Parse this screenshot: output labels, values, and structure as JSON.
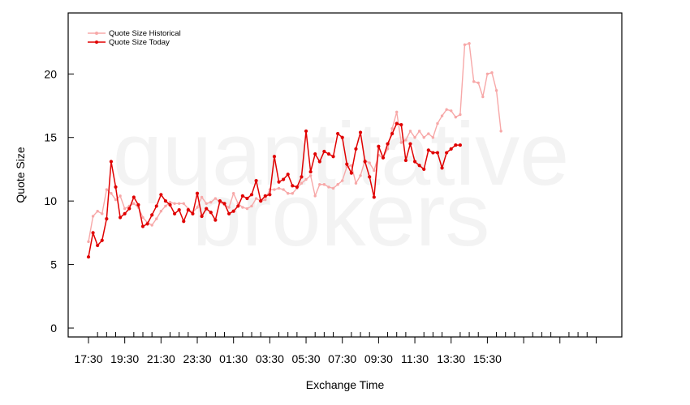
{
  "chart_data": {
    "type": "line",
    "title": "",
    "xlabel": "Exchange Time",
    "ylabel": "Quote Size",
    "watermark": [
      "quantitative",
      "brokers"
    ],
    "x_tick_labels": [
      "17:30",
      "19:30",
      "21:30",
      "23:30",
      "01:30",
      "03:30",
      "05:30",
      "07:30",
      "09:30",
      "11:30",
      "13:30",
      "15:30"
    ],
    "y_ticks": [
      0,
      5,
      10,
      15,
      20
    ],
    "ylim": [
      -0.7,
      24.8
    ],
    "grid": false,
    "legend_position": "top-left",
    "n_points": 114,
    "series": [
      {
        "name": "Quote Size Historical",
        "color": "#f7a8a8",
        "values": [
          6.8,
          8.8,
          9.2,
          9.0,
          10.9,
          10.6,
          10.1,
          10.4,
          9.4,
          9.6,
          9.8,
          9.5,
          8.7,
          8.3,
          8.1,
          8.6,
          9.2,
          9.6,
          9.9,
          9.8,
          9.8,
          9.8,
          9.4,
          9.1,
          9.5,
          10.3,
          9.8,
          9.9,
          10.2,
          9.9,
          9.7,
          9.5,
          10.6,
          9.8,
          9.5,
          9.4,
          9.6,
          10.2,
          10.0,
          10.1,
          10.9,
          10.9,
          11.0,
          10.9,
          10.6,
          10.6,
          11.0,
          11.4,
          11.7,
          12.0,
          10.4,
          11.3,
          11.3,
          11.1,
          11.0,
          11.3,
          11.6,
          12.7,
          12.8,
          11.4,
          12.0,
          13.2,
          13.0,
          12.4,
          13.6,
          13.4,
          14.1,
          15.7,
          17.0,
          14.6,
          14.8,
          15.5,
          15.0,
          15.5,
          15.0,
          15.3,
          15.0,
          16.1,
          16.7,
          17.2,
          17.1,
          16.6,
          16.8,
          22.3,
          22.4,
          19.4,
          19.3,
          18.2,
          20.0,
          20.1,
          18.7,
          15.5
        ]
      },
      {
        "name": "Quote Size Today",
        "color": "#e00000",
        "values": [
          5.6,
          7.5,
          6.5,
          6.9,
          8.6,
          13.1,
          11.1,
          8.7,
          9.0,
          9.4,
          10.3,
          9.7,
          8.0,
          8.2,
          8.9,
          9.6,
          10.5,
          10.0,
          9.7,
          9.0,
          9.3,
          8.4,
          9.3,
          9.0,
          10.6,
          8.8,
          9.4,
          9.1,
          8.5,
          10.0,
          9.8,
          9.0,
          9.2,
          9.6,
          10.4,
          10.2,
          10.5,
          11.6,
          10.0,
          10.4,
          10.5,
          13.5,
          11.5,
          11.7,
          12.1,
          11.2,
          11.1,
          11.9,
          15.5,
          12.3,
          13.7,
          13.1,
          13.9,
          13.7,
          13.5,
          15.3,
          15.0,
          12.9,
          12.2,
          14.1,
          15.4,
          13.1,
          11.9,
          10.3,
          14.3,
          13.4,
          14.5,
          15.3,
          16.1,
          16.0,
          13.2,
          14.5,
          13.1,
          12.8,
          12.5,
          14.0,
          13.8,
          13.8,
          12.6,
          13.8,
          14.1,
          14.4,
          14.4
        ]
      }
    ]
  }
}
